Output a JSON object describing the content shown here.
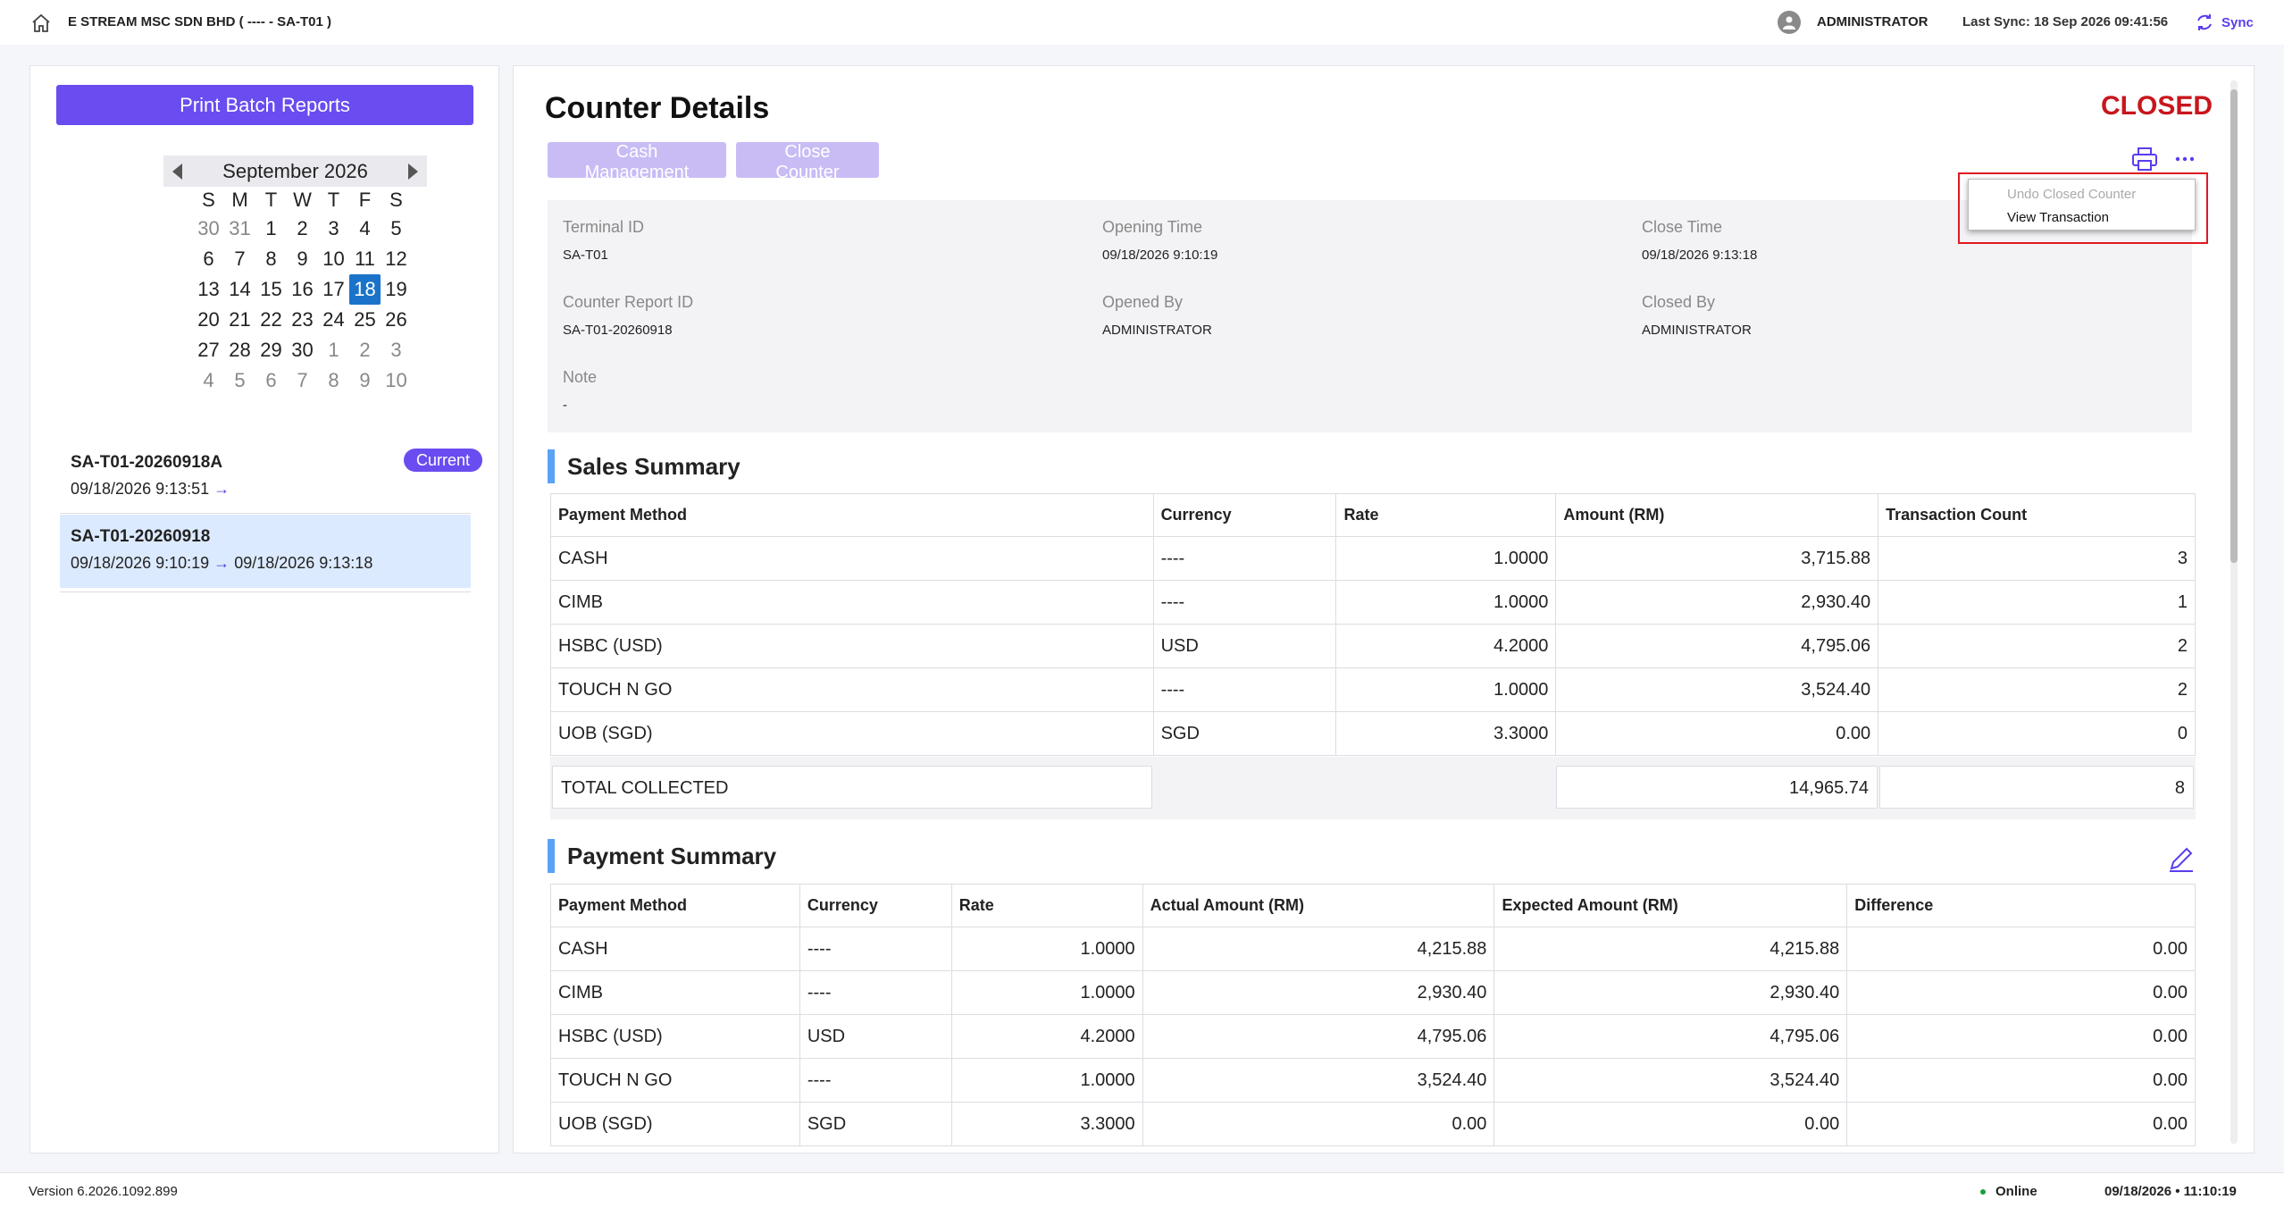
{
  "header": {
    "company": "E STREAM MSC SDN BHD ( ---- - SA-T01 )",
    "user": "ADMINISTRATOR",
    "last_sync": "Last Sync: 18 Sep 2026 09:41:56",
    "sync_label": "Sync"
  },
  "sidebar": {
    "print_batch_label": "Print Batch Reports",
    "calendar": {
      "month_label": "September 2026",
      "days_of_week": [
        "S",
        "M",
        "T",
        "W",
        "T",
        "F",
        "S"
      ],
      "weeks": [
        [
          "30",
          "31",
          "1",
          "2",
          "3",
          "4",
          "5"
        ],
        [
          "6",
          "7",
          "8",
          "9",
          "10",
          "11",
          "12"
        ],
        [
          "13",
          "14",
          "15",
          "16",
          "17",
          "18",
          "19"
        ],
        [
          "20",
          "21",
          "22",
          "23",
          "24",
          "25",
          "26"
        ],
        [
          "27",
          "28",
          "29",
          "30",
          "1",
          "2",
          "3"
        ],
        [
          "4",
          "5",
          "6",
          "7",
          "8",
          "9",
          "10"
        ]
      ],
      "selected_day": "18"
    },
    "batches": [
      {
        "id": "SA-T01-20260918A",
        "start": "09/18/2026 9:13:51",
        "arrow": "→",
        "end": "",
        "badge": "Current"
      },
      {
        "id": "SA-T01-20260918",
        "start": "09/18/2026 9:10:19",
        "arrow": "→",
        "end": "09/18/2026 9:13:18"
      }
    ]
  },
  "main": {
    "title": "Counter Details",
    "status": "CLOSED",
    "buttons": {
      "cash_management": "Cash Management",
      "close_counter": "Close Counter"
    },
    "info": {
      "terminal_id_label": "Terminal ID",
      "terminal_id": "SA-T01",
      "opening_time_label": "Opening Time",
      "opening_time": "09/18/2026 9:10:19",
      "close_time_label": "Close Time",
      "close_time": "09/18/2026 9:13:18",
      "report_id_label": "Counter Report ID",
      "report_id": "SA-T01-20260918",
      "opened_by_label": "Opened By",
      "opened_by": "ADMINISTRATOR",
      "closed_by_label": "Closed By",
      "closed_by": "ADMINISTRATOR",
      "note_label": "Note",
      "note": "-"
    },
    "sales_summary": {
      "title": "Sales Summary",
      "columns": [
        "Payment Method",
        "Currency",
        "Rate",
        "Amount (RM)",
        "Transaction Count"
      ],
      "rows": [
        [
          "CASH",
          "----",
          "1.0000",
          "3,715.88",
          "3"
        ],
        [
          "CIMB",
          "----",
          "1.0000",
          "2,930.40",
          "1"
        ],
        [
          "HSBC (USD)",
          "USD",
          "4.2000",
          "4,795.06",
          "2"
        ],
        [
          "TOUCH N GO",
          "----",
          "1.0000",
          "3,524.40",
          "2"
        ],
        [
          "UOB (SGD)",
          "SGD",
          "3.3000",
          "0.00",
          "0"
        ]
      ],
      "total_label": "TOTAL COLLECTED",
      "total_amount": "14,965.74",
      "total_count": "8"
    },
    "payment_summary": {
      "title": "Payment Summary",
      "columns": [
        "Payment Method",
        "Currency",
        "Rate",
        "Actual Amount (RM)",
        "Expected Amount (RM)",
        "Difference"
      ],
      "rows": [
        [
          "CASH",
          "----",
          "1.0000",
          "4,215.88",
          "4,215.88",
          "0.00"
        ],
        [
          "CIMB",
          "----",
          "1.0000",
          "2,930.40",
          "2,930.40",
          "0.00"
        ],
        [
          "HSBC (USD)",
          "USD",
          "4.2000",
          "4,795.06",
          "4,795.06",
          "0.00"
        ],
        [
          "TOUCH N GO",
          "----",
          "1.0000",
          "3,524.40",
          "3,524.40",
          "0.00"
        ],
        [
          "UOB (SGD)",
          "SGD",
          "3.3000",
          "0.00",
          "0.00",
          "0.00"
        ]
      ]
    },
    "menu": {
      "undo_closed": "Undo Closed Counter",
      "view_transaction": "View Transaction"
    }
  },
  "footer": {
    "version": "Version 6.2026.1092.899",
    "status": "Online",
    "datetime": "09/18/2026  • 11:10:19"
  },
  "colors": {
    "accent": "#6a4cf0",
    "closed": "#c8161d",
    "selected_day": "#1a73c9",
    "section_bar": "#5aa2f5"
  }
}
